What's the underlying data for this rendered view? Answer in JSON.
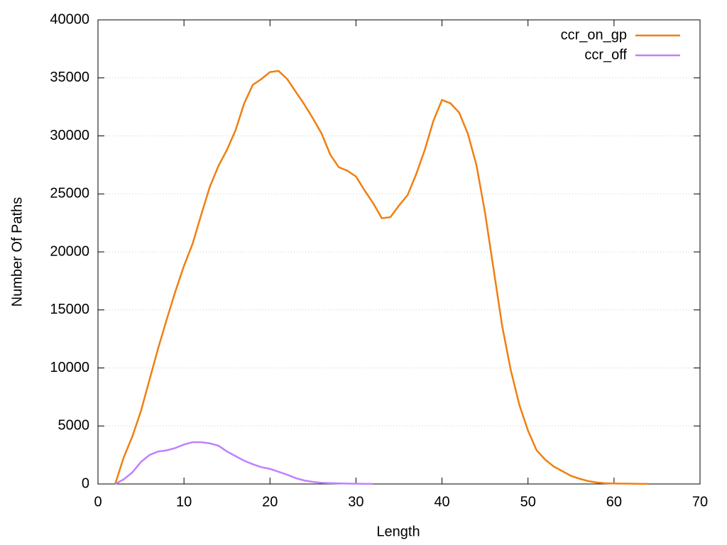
{
  "chart_data": {
    "type": "line",
    "xlabel": "Length",
    "ylabel": "Number Of Paths",
    "xlim": [
      0,
      70
    ],
    "xticks": [
      0,
      10,
      20,
      30,
      40,
      50,
      60,
      70
    ],
    "ylim": [
      0,
      40000
    ],
    "yticks": [
      0,
      5000,
      10000,
      15000,
      20000,
      25000,
      30000,
      35000,
      40000
    ],
    "grid": true,
    "legend": "top-right",
    "series": [
      {
        "name": "ccr_on_gp",
        "color": "#f07f10",
        "x": [
          2,
          3,
          4,
          5,
          6,
          7,
          8,
          9,
          10,
          11,
          12,
          13,
          14,
          15,
          16,
          17,
          18,
          19,
          20,
          21,
          22,
          23,
          24,
          25,
          26,
          27,
          28,
          29,
          30,
          31,
          32,
          33,
          34,
          35,
          36,
          37,
          38,
          39,
          40,
          41,
          42,
          43,
          44,
          45,
          46,
          47,
          48,
          49,
          50,
          51,
          52,
          53,
          54,
          55,
          56,
          57,
          58,
          59,
          60,
          61,
          62,
          63,
          64
        ],
        "values": [
          0,
          2300,
          4100,
          6300,
          9000,
          11700,
          14200,
          16600,
          18800,
          20700,
          23200,
          25600,
          27400,
          28800,
          30500,
          32800,
          34400,
          34900,
          35500,
          35600,
          34900,
          33800,
          32700,
          31500,
          30200,
          28400,
          27300,
          27000,
          26500,
          25300,
          24200,
          22900,
          23000,
          24000,
          24900,
          26700,
          28800,
          31300,
          33100,
          32800,
          32000,
          30200,
          27500,
          23400,
          18500,
          13600,
          9800,
          6800,
          4600,
          2900,
          2100,
          1500,
          1100,
          700,
          450,
          250,
          120,
          60,
          40,
          30,
          20,
          10,
          5
        ]
      },
      {
        "name": "ccr_off",
        "color": "#c080ff",
        "x": [
          2,
          3,
          4,
          5,
          6,
          7,
          8,
          9,
          10,
          11,
          12,
          13,
          14,
          15,
          16,
          17,
          18,
          19,
          20,
          21,
          22,
          23,
          24,
          25,
          26,
          27,
          28,
          29,
          30,
          31,
          32
        ],
        "values": [
          0,
          400,
          1000,
          1900,
          2500,
          2800,
          2900,
          3100,
          3400,
          3600,
          3600,
          3500,
          3300,
          2800,
          2400,
          2000,
          1700,
          1450,
          1300,
          1050,
          800,
          500,
          300,
          180,
          100,
          70,
          50,
          30,
          20,
          10,
          5
        ]
      }
    ]
  }
}
